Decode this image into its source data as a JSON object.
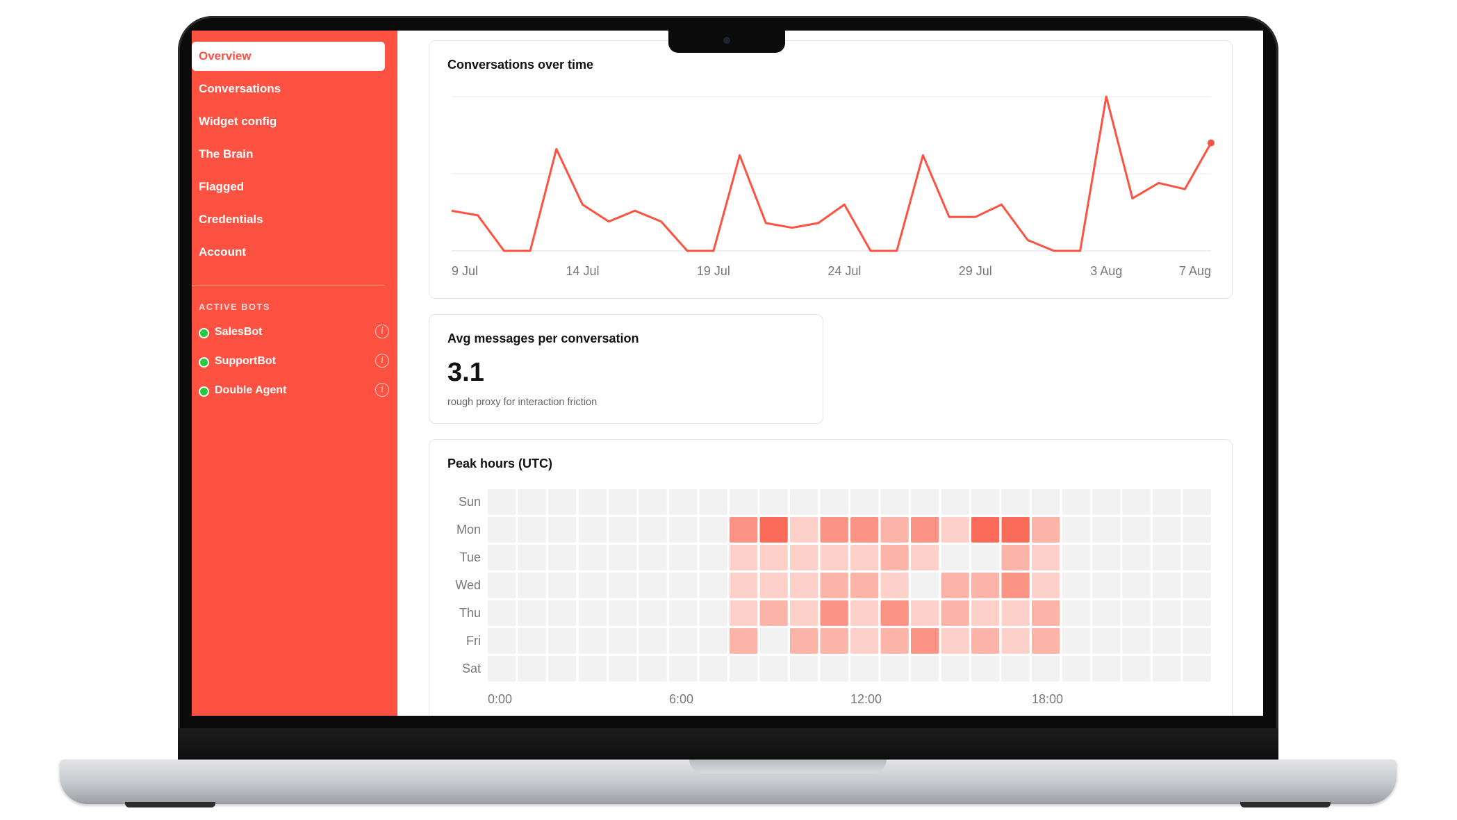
{
  "sidebar": {
    "nav": [
      {
        "label": "Overview",
        "active": true
      },
      {
        "label": "Conversations",
        "active": false
      },
      {
        "label": "Widget config",
        "active": false
      },
      {
        "label": "The Brain",
        "active": false
      },
      {
        "label": "Flagged",
        "active": false
      },
      {
        "label": "Credentials",
        "active": false
      },
      {
        "label": "Account",
        "active": false
      }
    ],
    "section_label": "ACTIVE BOTS",
    "bots": [
      {
        "name": "SalesBot",
        "status": "active",
        "info_icon": "info-icon"
      },
      {
        "name": "SupportBot",
        "status": "active",
        "info_icon": "info-icon"
      },
      {
        "name": "Double Agent",
        "status": "active",
        "info_icon": "info-icon"
      }
    ]
  },
  "conversations_card": {
    "title": "Conversations over time"
  },
  "avg_card": {
    "title": "Avg messages per conversation",
    "value": "3.1",
    "subtitle": "rough proxy for interaction friction"
  },
  "peak_card": {
    "title": "Peak hours (UTC)"
  },
  "colors": {
    "brand": "#fd5241",
    "line": "#fd5241",
    "heat_empty": "#f2f2f2"
  },
  "chart_data": [
    {
      "type": "line",
      "title": "Conversations over time",
      "x": [
        "9 Jul",
        "10 Jul",
        "11 Jul",
        "12 Jul",
        "13 Jul",
        "14 Jul",
        "15 Jul",
        "16 Jul",
        "17 Jul",
        "18 Jul",
        "19 Jul",
        "20 Jul",
        "21 Jul",
        "22 Jul",
        "23 Jul",
        "24 Jul",
        "25 Jul",
        "26 Jul",
        "27 Jul",
        "28 Jul",
        "29 Jul",
        "30 Jul",
        "31 Jul",
        "1 Aug",
        "2 Aug",
        "3 Aug",
        "4 Aug",
        "5 Aug",
        "6 Aug",
        "7 Aug"
      ],
      "x_tick_labels": [
        "9 Jul",
        "14 Jul",
        "19 Jul",
        "24 Jul",
        "29 Jul",
        "3 Aug",
        "7 Aug"
      ],
      "series": [
        {
          "values": [
            2.6,
            2.3,
            0,
            0,
            6.6,
            3,
            1.9,
            2.6,
            1.9,
            0,
            0,
            6.2,
            1.8,
            1.5,
            1.8,
            3,
            0,
            0,
            6.2,
            2.2,
            2.2,
            3,
            0.7,
            0,
            0,
            10,
            3.4,
            4.4,
            4,
            7
          ]
        }
      ],
      "ylim": [
        0,
        10
      ],
      "grid": true,
      "end_marker": true
    },
    {
      "type": "heatmap",
      "title": "Peak hours (UTC)",
      "rows": [
        "Sun",
        "Mon",
        "Tue",
        "Wed",
        "Thu",
        "Fri",
        "Sat"
      ],
      "columns": [
        "0",
        "1",
        "2",
        "3",
        "4",
        "5",
        "6",
        "7",
        "8",
        "9",
        "10",
        "11",
        "12",
        "13",
        "14",
        "15",
        "16",
        "17",
        "18",
        "19",
        "20",
        "21",
        "22",
        "23"
      ],
      "x_tick_labels": [
        "0:00",
        "6:00",
        "12:00",
        "18:00"
      ],
      "values": [
        [
          0,
          0,
          0,
          0,
          0,
          0,
          0,
          0,
          0,
          0,
          0,
          0,
          0,
          0,
          0,
          0,
          0,
          0,
          0,
          0,
          0,
          0,
          0,
          0
        ],
        [
          0,
          0,
          0,
          0,
          0,
          0,
          0,
          0,
          3,
          4,
          1,
          3,
          3,
          2,
          3,
          1,
          4,
          4,
          2,
          0,
          0,
          0,
          0,
          0
        ],
        [
          0,
          0,
          0,
          0,
          0,
          0,
          0,
          0,
          1,
          1,
          1,
          1,
          1,
          2,
          1,
          0,
          0,
          2,
          1,
          0,
          0,
          0,
          0,
          0
        ],
        [
          0,
          0,
          0,
          0,
          0,
          0,
          0,
          0,
          1,
          1,
          1,
          2,
          2,
          1,
          0,
          2,
          2,
          3,
          1,
          0,
          0,
          0,
          0,
          0
        ],
        [
          0,
          0,
          0,
          0,
          0,
          0,
          0,
          0,
          1,
          2,
          1,
          3,
          1,
          3,
          1,
          2,
          1,
          1,
          2,
          0,
          0,
          0,
          0,
          0
        ],
        [
          0,
          0,
          0,
          0,
          0,
          0,
          0,
          0,
          2,
          0,
          2,
          2,
          1,
          2,
          3,
          1,
          2,
          1,
          2,
          0,
          0,
          0,
          0,
          0
        ],
        [
          0,
          0,
          0,
          0,
          0,
          0,
          0,
          0,
          0,
          0,
          0,
          0,
          0,
          0,
          0,
          0,
          0,
          0,
          0,
          0,
          0,
          0,
          0,
          0
        ]
      ],
      "scale_max": 4
    }
  ]
}
